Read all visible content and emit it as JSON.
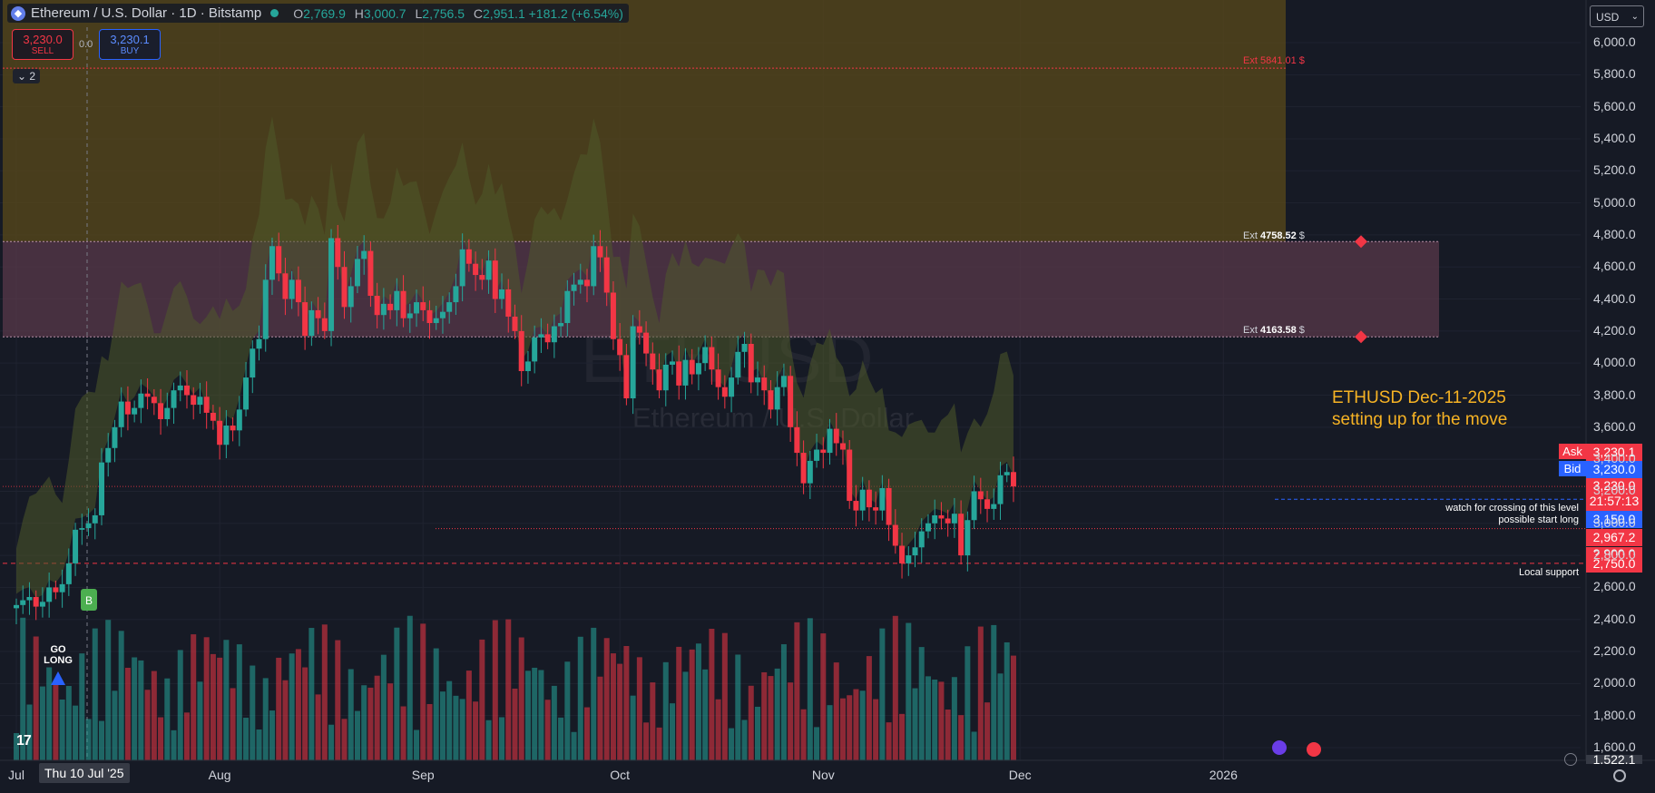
{
  "header": {
    "symbol": "Ethereum / U.S. Dollar · 1D · Bitstamp",
    "coin_glyph": "◆",
    "open_label": "O",
    "open": "2,769.9",
    "high_label": "H",
    "high": "3,000.7",
    "low_label": "L",
    "low": "2,756.5",
    "close_label": "C",
    "close": "2,951.1",
    "change": "+181.2 (+6.54%)"
  },
  "trade": {
    "sell_price": "3,230.0",
    "sell_label": "SELL",
    "spread": "0.0",
    "buy_price": "3,230.1",
    "buy_label": "BUY"
  },
  "indicator_count": "2",
  "currency": "USD",
  "watermark": {
    "ticker": "ETHUSD",
    "name": "Ethereum / U.S. Dollar"
  },
  "logo": "17",
  "cursor_date": "Thu 10 Jul '25",
  "price_tags": {
    "ask_label": "Ask",
    "ask": "3,230.1",
    "bid_label": "Bid",
    "bid": "3,230.0",
    "last": "3,230.0",
    "countdown": "21:57:13",
    "level1": "3,150.0",
    "level2": "2,967.2",
    "level2_hidden": "2,900.0",
    "level3": "2,750.0",
    "bottom": "1,522.1"
  },
  "annotations": {
    "ext1_prefix": "Ext",
    "ext1_value": "5841.01",
    "ext1_unit": "$",
    "ext2_prefix": "Ext",
    "ext2_value": "4758.52",
    "ext2_unit": "$",
    "ext3_prefix": "Ext",
    "ext3_value": "4163.58",
    "ext3_unit": "$",
    "note_line1": "ETHUSD Dec-11-2025",
    "note_line2": "setting up for the move",
    "watch_line1": "watch for crossing of this level",
    "watch_line2": "possible start long",
    "local_support": "Local support",
    "go_long_1": "GO",
    "go_long_2": "LONG",
    "buy_signal": "B"
  },
  "colors": {
    "up": "#26a69a",
    "down": "#f23645",
    "accent_orange": "#f7b324",
    "zone_top": "#5a4a1a",
    "zone_mid": "#5c3a4c",
    "blue": "#2962ff"
  },
  "chart_data": {
    "type": "candlestick",
    "symbol": "ETHUSD",
    "timeframe": "1D",
    "ylim": [
      1522.1,
      6150
    ],
    "y_ticks": [
      "6,000.0",
      "5,800.0",
      "5,600.0",
      "5,400.0",
      "5,200.0",
      "5,000.0",
      "4,800.0",
      "4,600.0",
      "4,400.0",
      "4,200.0",
      "4,000.0",
      "3,800.0",
      "3,600.0",
      "3,400.0",
      "3,200.0",
      "3,000.0",
      "2,800.0",
      "2,600.0",
      "2,400.0",
      "2,200.0",
      "2,000.0",
      "1,800.0",
      "1,600.0"
    ],
    "x_ticks": [
      {
        "label": "Jul",
        "day": 0
      },
      {
        "label": "Aug",
        "day": 31
      },
      {
        "label": "Sep",
        "day": 62
      },
      {
        "label": "Oct",
        "day": 92
      },
      {
        "label": "Nov",
        "day": 123
      },
      {
        "label": "Dec",
        "day": 153
      },
      {
        "label": "2026",
        "day": 184
      }
    ],
    "x_start": "2025-07-01",
    "closes": [
      2490,
      2520,
      2540,
      2480,
      2510,
      2600,
      2570,
      2620,
      2750,
      2960,
      2970,
      3000,
      3050,
      3380,
      3470,
      3600,
      3760,
      3680,
      3720,
      3810,
      3790,
      3750,
      3650,
      3720,
      3830,
      3860,
      3800,
      3740,
      3790,
      3690,
      3640,
      3490,
      3610,
      3580,
      3710,
      3910,
      4090,
      4150,
      4520,
      4730,
      4560,
      4400,
      4520,
      4380,
      4170,
      4330,
      4280,
      4200,
      4780,
      4600,
      4350,
      4480,
      4650,
      4700,
      4420,
      4300,
      4370,
      4330,
      4450,
      4280,
      4310,
      4380,
      4330,
      4250,
      4280,
      4320,
      4380,
      4480,
      4710,
      4620,
      4550,
      4520,
      4640,
      4400,
      4460,
      4290,
      4200,
      3950,
      4010,
      4160,
      4180,
      4130,
      4230,
      4250,
      4450,
      4490,
      4520,
      4480,
      4730,
      4660,
      4440,
      4150,
      4050,
      3780,
      4230,
      4190,
      4060,
      3960,
      3830,
      3990,
      4010,
      3860,
      4020,
      3930,
      4000,
      4100,
      3960,
      3850,
      3790,
      3910,
      4070,
      4120,
      3880,
      3910,
      3830,
      3710,
      3850,
      3920,
      3600,
      3440,
      3250,
      3390,
      3460,
      3440,
      3590,
      3500,
      3460,
      3140,
      3080,
      3210,
      3100,
      3080,
      3220,
      2990,
      2860,
      2750,
      2800,
      2850,
      2950,
      3000,
      3050,
      3030,
      3000,
      3060,
      2800,
      3020,
      3200,
      3150,
      3090,
      3120,
      3300,
      3320,
      3230
    ],
    "volume_range": [
      0,
      1
    ]
  }
}
